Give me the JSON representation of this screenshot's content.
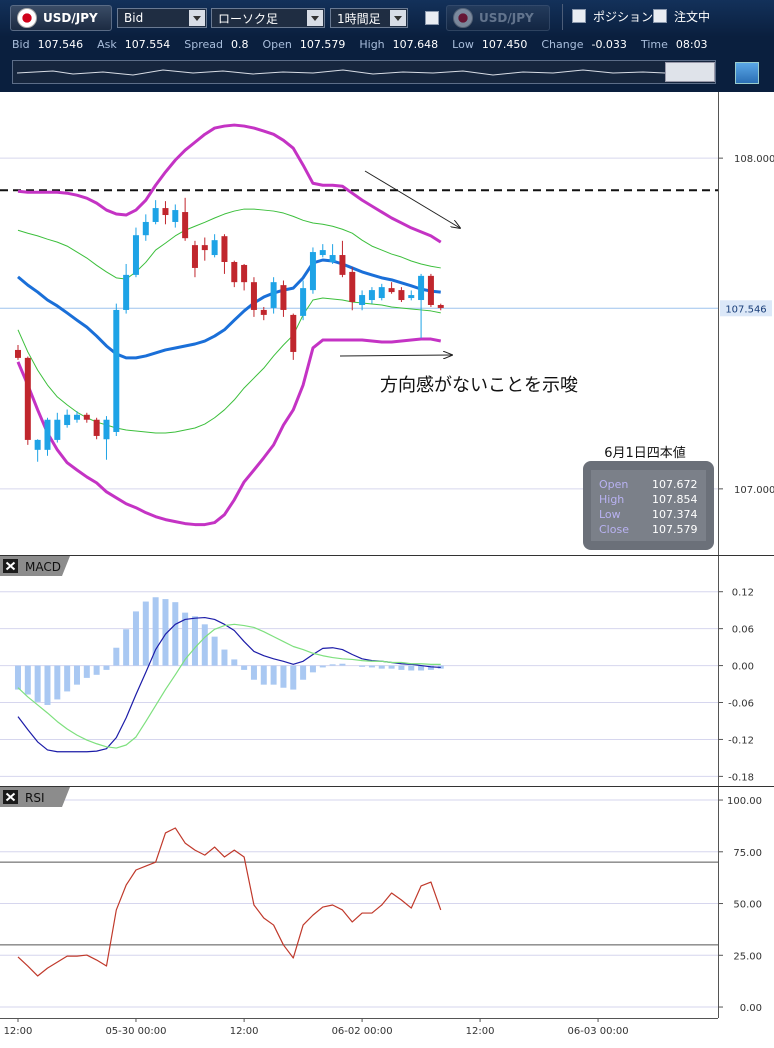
{
  "toolbar": {
    "symbol": "USD/JPY",
    "price_type": "Bid",
    "chart_style": "ローソク足",
    "timeframe": "1時間足",
    "compare_symbol": "USD/JPY",
    "position_toggle": "ポジション",
    "order_toggle": "注文中"
  },
  "quote": [
    {
      "label": "Bid",
      "value": "107.546"
    },
    {
      "label": "Ask",
      "value": "107.554"
    },
    {
      "label": "Spread",
      "value": "0.8"
    },
    {
      "label": "Open",
      "value": "107.579"
    },
    {
      "label": "High",
      "value": "107.648"
    },
    {
      "label": "Low",
      "value": "107.450"
    },
    {
      "label": "Change",
      "value": "-0.033"
    },
    {
      "label": "Time",
      "value": "08:03"
    }
  ],
  "chart_data": [
    {
      "type": "candlestick",
      "up_color": "#1ea3e6",
      "down_color": "#c0262d",
      "xlim": [
        -1.83,
        71.2
      ],
      "ylim": [
        106.8,
        108.2
      ],
      "yticks": [
        {
          "value": 108,
          "label": "108.000"
        },
        {
          "value": 107,
          "label": "107.000"
        }
      ],
      "grid": true,
      "last_price": 107.546,
      "reference_line": 107.903,
      "annotation": "方向感がないことを示唆",
      "ohlc_box": {
        "title": "6月1日四本値",
        "rows": [
          {
            "label": "Open",
            "value": "107.672"
          },
          {
            "label": "High",
            "value": "107.854"
          },
          {
            "label": "Low",
            "value": "107.374"
          },
          {
            "label": "Close",
            "value": "107.579"
          }
        ]
      },
      "open": [
        107.42,
        107.396,
        107.118,
        107.118,
        107.148,
        107.193,
        107.209,
        107.224,
        107.209,
        107.15,
        107.172,
        107.541,
        107.647,
        107.767,
        107.807,
        107.849,
        107.807,
        107.837,
        107.737,
        107.737,
        107.707,
        107.764,
        107.686,
        107.677,
        107.625,
        107.541,
        107.547,
        107.616,
        107.526,
        107.523,
        107.601,
        107.707,
        107.686,
        107.707,
        107.656,
        107.556,
        107.571,
        107.577,
        107.607,
        107.601,
        107.577,
        107.571,
        107.644,
        107.556
      ],
      "high": [
        107.435,
        107.4,
        107.15,
        107.215,
        107.23,
        107.24,
        107.235,
        107.23,
        107.215,
        107.22,
        107.56,
        107.68,
        107.79,
        107.83,
        107.873,
        107.87,
        107.86,
        107.88,
        107.75,
        107.76,
        107.77,
        107.77,
        107.69,
        107.68,
        107.64,
        107.55,
        107.64,
        107.63,
        107.53,
        107.63,
        107.73,
        107.74,
        107.74,
        107.75,
        107.67,
        107.6,
        107.61,
        107.62,
        107.625,
        107.61,
        107.6,
        107.65,
        107.65,
        107.56
      ],
      "low": [
        107.39,
        107.133,
        107.082,
        107.1,
        107.14,
        107.185,
        107.2,
        107.2,
        107.15,
        107.088,
        107.16,
        107.53,
        107.64,
        107.75,
        107.8,
        107.8,
        107.79,
        107.75,
        107.64,
        107.69,
        107.7,
        107.65,
        107.61,
        107.6,
        107.52,
        107.51,
        107.53,
        107.52,
        107.39,
        107.51,
        107.59,
        107.7,
        107.68,
        107.64,
        107.54,
        107.54,
        107.56,
        107.57,
        107.59,
        107.565,
        107.57,
        107.456,
        107.55,
        107.54
      ],
      "close": [
        107.396,
        107.148,
        107.148,
        107.209,
        107.209,
        107.224,
        107.224,
        107.209,
        107.16,
        107.209,
        107.541,
        107.647,
        107.767,
        107.807,
        107.849,
        107.828,
        107.843,
        107.758,
        107.668,
        107.722,
        107.752,
        107.686,
        107.625,
        107.625,
        107.541,
        107.526,
        107.625,
        107.541,
        107.414,
        107.607,
        107.716,
        107.722,
        107.707,
        107.647,
        107.565,
        107.586,
        107.601,
        107.61,
        107.595,
        107.571,
        107.586,
        107.644,
        107.556,
        107.547
      ],
      "overlays": [
        {
          "color": "#c433c4",
          "width": 3,
          "values": [
            107.9,
            107.897,
            107.897,
            107.897,
            107.897,
            107.894,
            107.888,
            107.879,
            107.864,
            107.843,
            107.831,
            107.828,
            107.843,
            107.873,
            107.918,
            107.958,
            107.994,
            108.024,
            108.048,
            108.072,
            108.091,
            108.097,
            108.1,
            108.097,
            108.091,
            108.082,
            108.072,
            108.054,
            108.03,
            107.979,
            107.924,
            107.918,
            107.918,
            107.915,
            107.894,
            107.873,
            107.855,
            107.837,
            107.819,
            107.804,
            107.789,
            107.777,
            107.765,
            107.746
          ]
        },
        {
          "color": "#3cbf3c",
          "width": 1,
          "values": [
            107.782,
            107.773,
            107.765,
            107.755,
            107.746,
            107.734,
            107.716,
            107.698,
            107.676,
            107.656,
            107.638,
            107.634,
            107.656,
            107.685,
            107.722,
            107.743,
            107.765,
            107.782,
            107.794,
            107.806,
            107.819,
            107.831,
            107.84,
            107.846,
            107.846,
            107.843,
            107.84,
            107.834,
            107.824,
            107.812,
            107.804,
            107.8,
            107.794,
            107.785,
            107.773,
            107.752,
            107.734,
            107.722,
            107.71,
            107.701,
            107.689,
            107.68,
            107.673,
            107.668
          ]
        },
        {
          "color": "#1a6fd8",
          "width": 3,
          "values": [
            107.641,
            107.616,
            107.595,
            107.571,
            107.553,
            107.532,
            107.51,
            107.489,
            107.462,
            107.432,
            107.408,
            107.396,
            107.396,
            107.402,
            107.411,
            107.42,
            107.426,
            107.432,
            107.438,
            107.447,
            107.462,
            107.481,
            107.51,
            107.538,
            107.562,
            107.58,
            107.592,
            107.601,
            107.607,
            107.638,
            107.683,
            107.692,
            107.689,
            107.68,
            107.668,
            107.656,
            107.647,
            107.638,
            107.632,
            107.623,
            107.614,
            107.604,
            107.598,
            107.595
          ]
        },
        {
          "color": "#3cbf3c",
          "width": 1,
          "values": [
            107.481,
            107.414,
            107.359,
            107.314,
            107.278,
            107.254,
            107.232,
            107.215,
            107.202,
            107.193,
            107.184,
            107.178,
            107.175,
            107.172,
            107.169,
            107.169,
            107.172,
            107.178,
            107.184,
            107.196,
            107.215,
            107.239,
            107.269,
            107.305,
            107.335,
            107.365,
            107.402,
            107.435,
            107.465,
            107.526,
            107.571,
            107.577,
            107.574,
            107.571,
            107.565,
            107.562,
            107.559,
            107.556,
            107.55,
            107.547,
            107.544,
            107.541,
            107.538,
            107.532
          ]
        },
        {
          "color": "#c433c4",
          "width": 3,
          "values": [
            107.384,
            107.314,
            107.239,
            107.169,
            107.118,
            107.079,
            107.057,
            107.036,
            107.018,
            106.991,
            106.973,
            106.955,
            106.943,
            106.928,
            106.916,
            106.907,
            106.901,
            106.895,
            106.892,
            106.892,
            106.898,
            106.922,
            106.967,
            107.021,
            107.057,
            107.094,
            107.133,
            107.193,
            107.239,
            107.314,
            107.426,
            107.45,
            107.45,
            107.45,
            107.45,
            107.45,
            107.447,
            107.444,
            107.444,
            107.447,
            107.45,
            107.453,
            107.453,
            107.447
          ]
        }
      ]
    },
    {
      "type": "macd",
      "title": "MACD",
      "xlim": [
        -1.83,
        71.2
      ],
      "ylim": [
        -0.194,
        0.178
      ],
      "yticks": [
        0.12,
        0.06,
        {
          "value": 0,
          "label": "0.00"
        },
        -0.06,
        -0.12,
        -0.18
      ],
      "grid": true,
      "histogram": {
        "color": "#a9c8f2",
        "values": [
          -0.039,
          -0.047,
          -0.059,
          -0.064,
          -0.055,
          -0.042,
          -0.031,
          -0.02,
          -0.015,
          -0.007,
          0.029,
          0.059,
          0.088,
          0.104,
          0.111,
          0.108,
          0.103,
          0.086,
          0.08,
          0.067,
          0.047,
          0.026,
          0.01,
          -0.007,
          -0.023,
          -0.031,
          -0.031,
          -0.036,
          -0.039,
          -0.023,
          -0.011,
          -0.003,
          0.002,
          0.003,
          0.0,
          -0.002,
          -0.003,
          -0.005,
          -0.005,
          -0.007,
          -0.008,
          -0.008,
          -0.007,
          -0.005
        ]
      },
      "series": [
        {
          "color": "#1c1ca8",
          "values": [
            -0.083,
            -0.104,
            -0.124,
            -0.137,
            -0.14,
            -0.14,
            -0.14,
            -0.14,
            -0.139,
            -0.135,
            -0.117,
            -0.085,
            -0.047,
            -0.011,
            0.026,
            0.051,
            0.067,
            0.075,
            0.077,
            0.078,
            0.075,
            0.067,
            0.057,
            0.039,
            0.023,
            0.016,
            0.011,
            0.007,
            0.002,
            0.007,
            0.018,
            0.028,
            0.029,
            0.026,
            0.018,
            0.011,
            0.008,
            0.007,
            0.005,
            0.003,
            0.002,
            0.0,
            -0.002,
            -0.003
          ]
        },
        {
          "color": "#7ee07e",
          "values": [
            -0.036,
            -0.051,
            -0.064,
            -0.077,
            -0.091,
            -0.103,
            -0.113,
            -0.121,
            -0.127,
            -0.132,
            -0.134,
            -0.129,
            -0.116,
            -0.091,
            -0.065,
            -0.039,
            -0.015,
            0.01,
            0.029,
            0.046,
            0.059,
            0.065,
            0.067,
            0.065,
            0.062,
            0.055,
            0.047,
            0.039,
            0.031,
            0.026,
            0.02,
            0.016,
            0.013,
            0.011,
            0.01,
            0.008,
            0.007,
            0.007,
            0.005,
            0.005,
            0.003,
            0.003,
            0.002,
            0.002
          ]
        }
      ]
    },
    {
      "type": "line",
      "title": "RSI",
      "xlim": [
        -1.83,
        71.2
      ],
      "ylim": [
        -5.3,
        106.3
      ],
      "yticks": [
        {
          "value": 100,
          "label": "100.00"
        },
        {
          "value": 75,
          "label": "75.00"
        },
        {
          "value": 50,
          "label": "50.00"
        },
        {
          "value": 25,
          "label": "25.00"
        },
        {
          "value": 0,
          "label": "0.00"
        }
      ],
      "grid": true,
      "levels": [
        70,
        30
      ],
      "xticks": [
        {
          "value": 0,
          "label": "12:00"
        },
        {
          "value": 12,
          "label": "05-30 00:00"
        },
        {
          "value": 23,
          "label": "12:00"
        },
        {
          "value": 35,
          "label": "06-02 00:00"
        },
        {
          "value": 47,
          "label": "12:00"
        },
        {
          "value": 59,
          "label": "06-03 00:00"
        }
      ],
      "series": [
        {
          "color": "#c0392b",
          "values": [
            24.2,
            19.8,
            15.0,
            18.8,
            21.7,
            24.6,
            24.6,
            25.1,
            22.7,
            19.8,
            46.9,
            58.9,
            66.2,
            68.1,
            70.0,
            84.1,
            86.5,
            79.2,
            75.8,
            73.4,
            77.3,
            72.5,
            75.8,
            72.5,
            49.3,
            43.0,
            39.6,
            30.0,
            23.7,
            39.6,
            44.4,
            48.3,
            49.3,
            46.9,
            41.1,
            45.4,
            45.4,
            49.3,
            55.1,
            51.7,
            47.8,
            58.5,
            60.4,
            46.9
          ]
        }
      ]
    }
  ]
}
